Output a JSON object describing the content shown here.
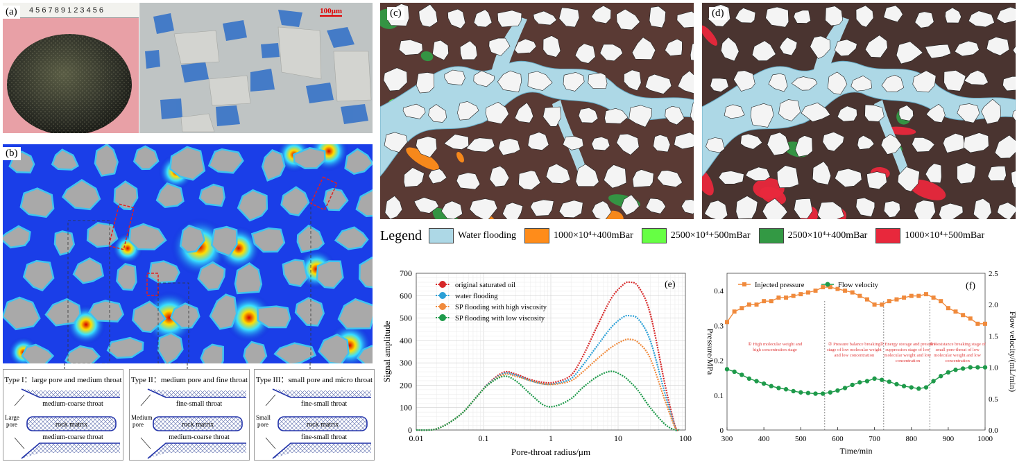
{
  "panels": {
    "a": {
      "label": "(a)",
      "scale_bar": "100μm",
      "ruler_digits": "4 5 6 7 8 9 1 2 3 4 5 6"
    },
    "b": {
      "label": "(b)"
    },
    "c": {
      "label": "(c)"
    },
    "d": {
      "label": "(d)"
    },
    "e": {
      "label": "(e)"
    },
    "f": {
      "label": "(f)"
    }
  },
  "colors": {
    "water": "#add8e6",
    "c1": "#ff8c1a",
    "c2": "#66ff44",
    "c3": "#339944",
    "c4": "#e8283c",
    "grain": "#f4f4f4",
    "matrix_b": "#a9a9a9"
  },
  "legend": {
    "title": "Legend",
    "items": [
      {
        "label": "Water flooding",
        "color": "#add8e6"
      },
      {
        "label": "1000×10⁴+400mBar",
        "color": "#ff8c1a"
      },
      {
        "label": "2500×10⁴+500mBar",
        "color": "#66ff44"
      },
      {
        "label": "2500×10⁴+400mBar",
        "color": "#339944"
      },
      {
        "label": "1000×10⁴+500mBar",
        "color": "#e8283c"
      }
    ]
  },
  "schematics": [
    {
      "title": "Type I：large pore and medium throat",
      "pore": "Large pore",
      "top": "medium-coarse throat",
      "mid": "rock matrix",
      "bot": "medium-coarse throat"
    },
    {
      "title": "Type II：medium pore and fine throat",
      "pore": "Medium pore",
      "top": "fine-small throat",
      "mid": "rock matrix",
      "bot": "medium-coarse throat"
    },
    {
      "title": "Type III：small pore and micro throat",
      "pore": "Small pore",
      "top": "fine-small throat",
      "mid": "rock matrix",
      "bot": "fine-small throat"
    }
  ],
  "chart_data": [
    {
      "type": "line",
      "panel": "e",
      "xlabel": "Pore-throat radius/μm",
      "ylabel": "Signal amplitude",
      "xscale": "log",
      "xlim": [
        0.01,
        100
      ],
      "ylim": [
        0,
        700
      ],
      "xticks": [
        0.01,
        0.1,
        1,
        10,
        100
      ],
      "xtick_labels": [
        "0.01",
        "0.1",
        "1",
        "10",
        "100"
      ],
      "yticks": [
        0,
        100,
        200,
        300,
        400,
        500,
        600,
        700
      ],
      "legend_position": "top-left",
      "series": [
        {
          "name": "original saturated oil",
          "color": "#d62728",
          "x": [
            0.01,
            0.015,
            0.02,
            0.03,
            0.05,
            0.08,
            0.12,
            0.2,
            0.3,
            0.5,
            0.8,
            1.2,
            2,
            3,
            5,
            8,
            12,
            15,
            20,
            30,
            50,
            70,
            80
          ],
          "y": [
            0,
            0,
            5,
            30,
            80,
            150,
            210,
            258,
            250,
            225,
            212,
            215,
            245,
            330,
            470,
            590,
            650,
            660,
            640,
            520,
            200,
            20,
            0
          ]
        },
        {
          "name": "water flooding",
          "color": "#2a9fd6",
          "x": [
            0.01,
            0.015,
            0.02,
            0.03,
            0.05,
            0.08,
            0.12,
            0.2,
            0.3,
            0.5,
            0.8,
            1.2,
            2,
            3,
            5,
            8,
            12,
            15,
            20,
            30,
            50,
            70,
            80
          ],
          "y": [
            0,
            0,
            5,
            30,
            80,
            150,
            208,
            252,
            245,
            220,
            205,
            208,
            230,
            290,
            380,
            460,
            505,
            510,
            495,
            400,
            160,
            15,
            0
          ]
        },
        {
          "name": "SP flooding with high viscosity",
          "color": "#f08a3c",
          "x": [
            0.01,
            0.015,
            0.02,
            0.03,
            0.05,
            0.08,
            0.12,
            0.2,
            0.3,
            0.5,
            0.8,
            1.2,
            2,
            3,
            5,
            8,
            12,
            15,
            20,
            30,
            50,
            70,
            80
          ],
          "y": [
            0,
            0,
            5,
            30,
            80,
            150,
            205,
            248,
            240,
            220,
            205,
            205,
            220,
            260,
            320,
            370,
            400,
            405,
            390,
            320,
            130,
            12,
            0
          ]
        },
        {
          "name": "SP flooding with low viscosity",
          "color": "#1e9a4a",
          "x": [
            0.01,
            0.015,
            0.02,
            0.03,
            0.05,
            0.08,
            0.12,
            0.2,
            0.3,
            0.5,
            0.8,
            1.2,
            2,
            3,
            5,
            8,
            12,
            15,
            20,
            30,
            50,
            70,
            80
          ],
          "y": [
            0,
            0,
            5,
            30,
            80,
            150,
            205,
            240,
            220,
            160,
            110,
            108,
            140,
            190,
            240,
            262,
            240,
            215,
            175,
            100,
            25,
            0,
            0
          ]
        }
      ]
    },
    {
      "type": "line",
      "panel": "f",
      "xlabel": "Time/min",
      "ylabel": "Pressure/MPa",
      "ylabel_right": "Flow velocity/(mL/min)",
      "xlim": [
        300,
        1000
      ],
      "ylim": [
        0,
        0.45
      ],
      "ylim_right": [
        0,
        2.5
      ],
      "xticks": [
        300,
        400,
        500,
        600,
        700,
        800,
        900,
        1000
      ],
      "yticks": [
        0,
        0.1,
        0.2,
        0.3,
        0.4
      ],
      "yticks_right": [
        0,
        0.5,
        1.0,
        1.5,
        2.0,
        2.5
      ],
      "legend_position": "top-left",
      "stage_lines": [
        565,
        725,
        850
      ],
      "stages": [
        {
          "text": "① High molecular weight and high concentration stage",
          "x": 430
        },
        {
          "text": "② Pressure balance breaking stage of low molecular weight and low concentration",
          "x": 645
        },
        {
          "text": "③ Energy storage and pressure suppression stage of low molecular weight and low concentration",
          "x": 790
        },
        {
          "text": "④ Resistance breaking stage of small pore-throat of low molecular weight and low concentration",
          "x": 925
        }
      ],
      "series": [
        {
          "name": "Injected pressure",
          "color": "#f08a3c",
          "marker": "square",
          "axis": "left",
          "x": [
            300,
            320,
            340,
            360,
            380,
            400,
            420,
            440,
            460,
            480,
            500,
            520,
            540,
            560,
            580,
            600,
            620,
            640,
            660,
            680,
            700,
            720,
            740,
            760,
            780,
            800,
            820,
            840,
            860,
            880,
            900,
            920,
            940,
            960,
            980,
            1000
          ],
          "y": [
            0.31,
            0.34,
            0.35,
            0.36,
            0.36,
            0.37,
            0.37,
            0.38,
            0.38,
            0.385,
            0.39,
            0.395,
            0.4,
            0.41,
            0.41,
            0.405,
            0.4,
            0.395,
            0.385,
            0.375,
            0.36,
            0.36,
            0.37,
            0.375,
            0.38,
            0.385,
            0.385,
            0.39,
            0.38,
            0.37,
            0.35,
            0.34,
            0.33,
            0.32,
            0.305,
            0.305
          ]
        },
        {
          "name": "Flow velocity",
          "color": "#1e9a4a",
          "marker": "circle",
          "axis": "right",
          "x": [
            300,
            320,
            340,
            360,
            380,
            400,
            420,
            440,
            460,
            480,
            500,
            520,
            540,
            560,
            580,
            600,
            620,
            640,
            660,
            680,
            700,
            720,
            740,
            760,
            780,
            800,
            820,
            840,
            860,
            880,
            900,
            920,
            940,
            960,
            980,
            1000
          ],
          "y": [
            0.97,
            0.93,
            0.88,
            0.82,
            0.78,
            0.74,
            0.7,
            0.67,
            0.65,
            0.62,
            0.6,
            0.59,
            0.58,
            0.58,
            0.6,
            0.63,
            0.67,
            0.72,
            0.76,
            0.78,
            0.82,
            0.8,
            0.77,
            0.73,
            0.7,
            0.68,
            0.66,
            0.68,
            0.78,
            0.86,
            0.92,
            0.96,
            0.98,
            1.0,
            1.0,
            1.0
          ]
        }
      ]
    }
  ]
}
